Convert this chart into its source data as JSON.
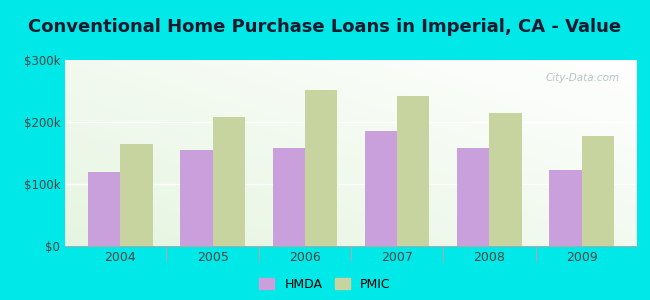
{
  "title": "Conventional Home Purchase Loans in Imperial, CA - Value",
  "years": [
    2004,
    2005,
    2006,
    2007,
    2008,
    2009
  ],
  "hmda_values": [
    120000,
    155000,
    158000,
    185000,
    158000,
    122000
  ],
  "pmic_values": [
    165000,
    208000,
    252000,
    242000,
    215000,
    177000
  ],
  "hmda_color": "#c9a0dc",
  "pmic_color": "#c8d4a0",
  "background_color": "#00e8e8",
  "ylim": [
    0,
    300000
  ],
  "yticks": [
    0,
    100000,
    200000,
    300000
  ],
  "ytick_labels": [
    "$0",
    "$100k",
    "$200k",
    "$300k"
  ],
  "bar_width": 0.35,
  "title_fontsize": 13,
  "watermark": "City-Data.com",
  "plot_bg_color": "#e8f5e0"
}
